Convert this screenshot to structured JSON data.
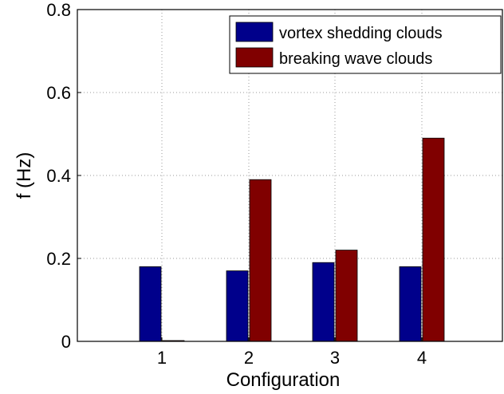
{
  "chart_data": {
    "type": "bar",
    "categories": [
      "1",
      "2",
      "3",
      "4"
    ],
    "series": [
      {
        "name": "vortex shedding clouds",
        "values": [
          0.18,
          0.17,
          0.19,
          0.18
        ],
        "color": "#00008b"
      },
      {
        "name": "breaking wave clouds",
        "values": [
          0.0,
          0.39,
          0.22,
          0.49
        ],
        "color": "#800000"
      }
    ],
    "xlabel": "Configuration",
    "ylabel": "f (Hz)",
    "ylim": [
      0,
      0.8
    ],
    "yticks": [
      "0",
      "0.2",
      "0.4",
      "0.6",
      "0.8"
    ],
    "grid": true,
    "legend_position": "top-right"
  }
}
